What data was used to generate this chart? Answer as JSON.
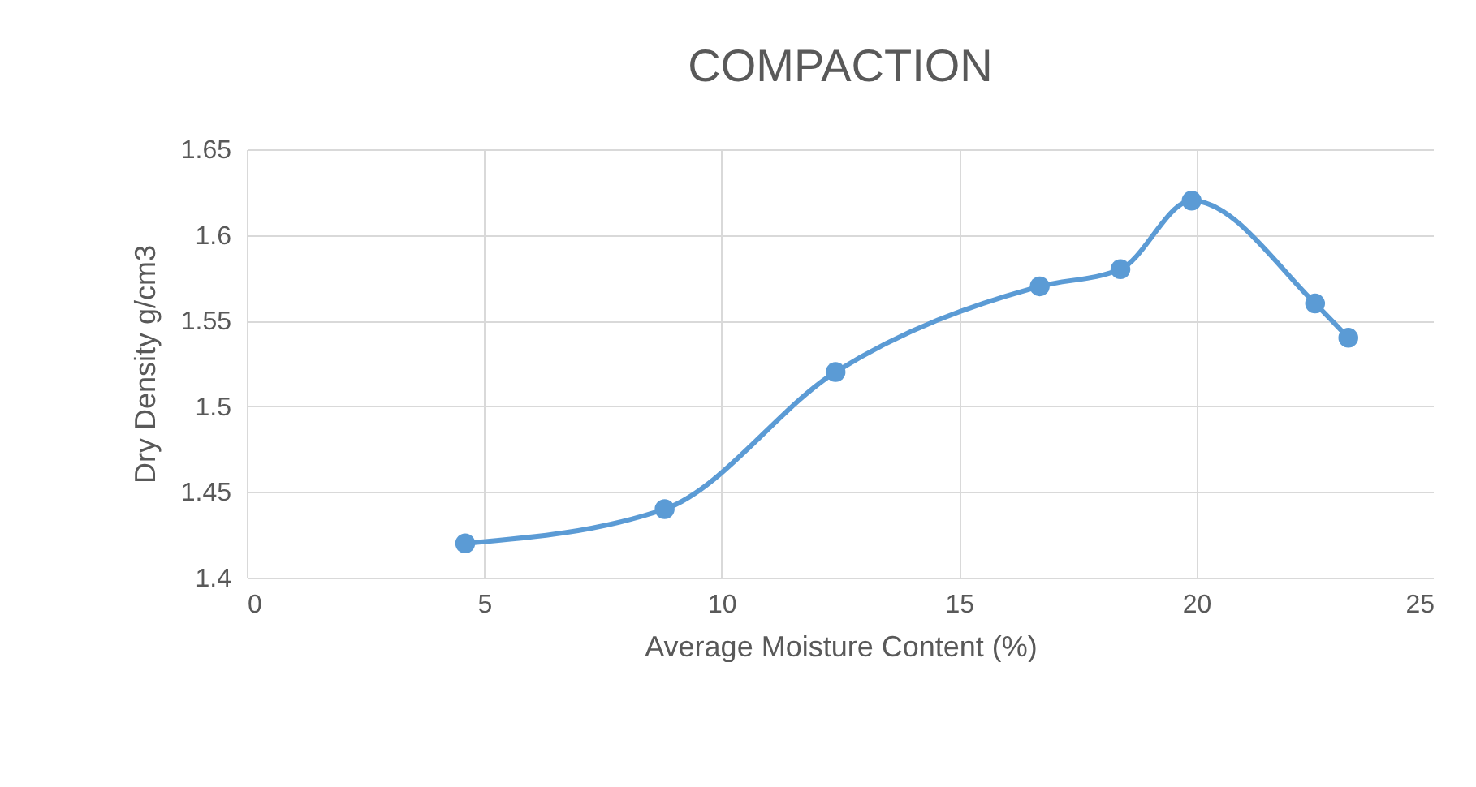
{
  "chart_data": {
    "type": "line",
    "title": "COMPACTION",
    "xlabel": "Average Moisture Content (%)",
    "ylabel": "Dry Density g/cm3",
    "x": [
      4.6,
      8.8,
      12.4,
      16.7,
      18.4,
      19.9,
      22.5,
      23.2
    ],
    "series": [
      {
        "color": "#5b9bd5",
        "values": [
          1.42,
          1.44,
          1.52,
          1.57,
          1.58,
          1.62,
          1.56,
          1.54
        ]
      }
    ],
    "xlim": [
      0,
      25
    ],
    "xticks": [
      0,
      5,
      10,
      15,
      20,
      25
    ],
    "ylim": [
      1.4,
      1.65
    ],
    "yticks": [
      1.4,
      1.45,
      1.5,
      1.55,
      1.6,
      1.65
    ],
    "grid": true,
    "marker": "circle",
    "line_style": "solid"
  }
}
